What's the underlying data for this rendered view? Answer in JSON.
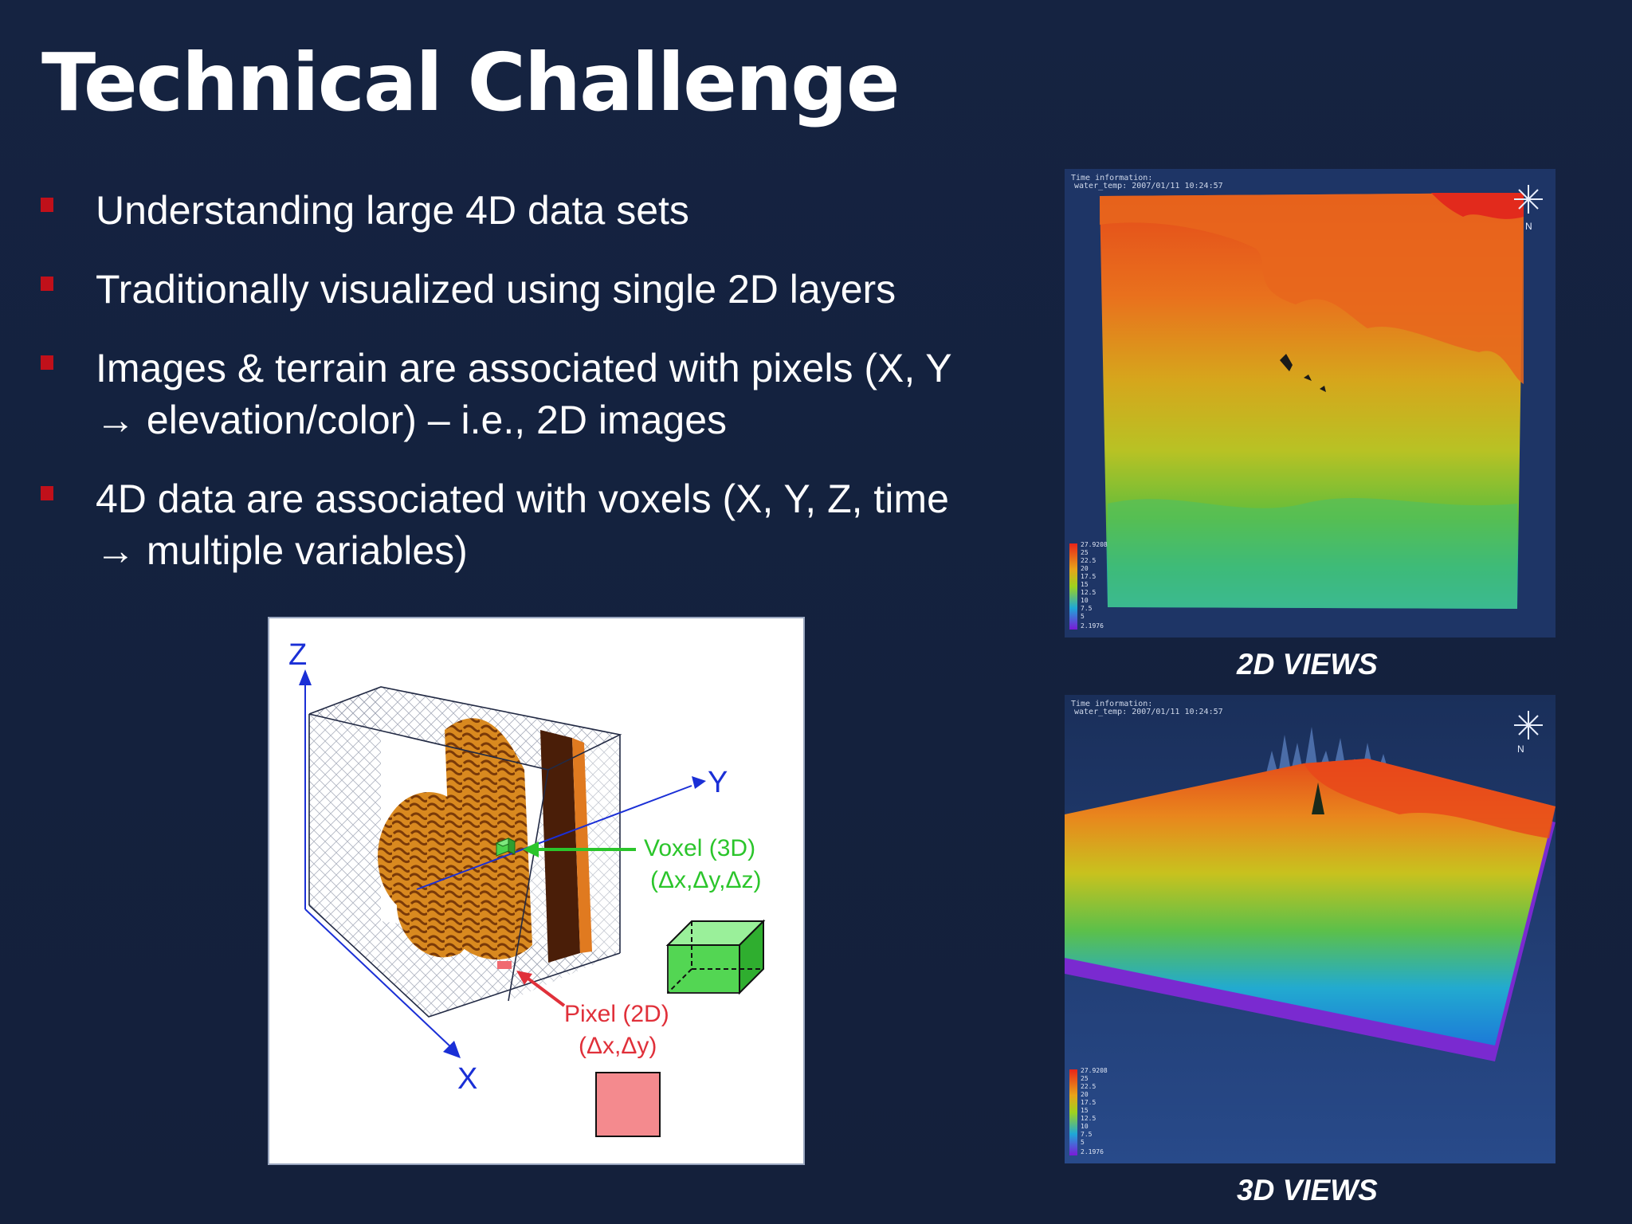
{
  "slide": {
    "title": "Technical Challenge",
    "bullets": [
      {
        "line1": "Understanding large 4D data sets",
        "line2": ""
      },
      {
        "line1": "Traditionally visualized using single 2D layers",
        "line2": ""
      },
      {
        "line1": "Images & terrain are associated with pixels (X, Y",
        "line2": "→ elevation/color) – i.e., 2D images"
      },
      {
        "line1": "4D data are associated with voxels (X, Y, Z, time",
        "line2": "→ multiple variables)"
      }
    ]
  },
  "diagram": {
    "axis_z": "Z",
    "axis_y": "Y",
    "axis_x": "X",
    "voxel_label": "Voxel (3D)",
    "voxel_formula": "(Δx,Δy,Δz)",
    "pixel_label": "Pixel (2D)",
    "pixel_formula": "(Δx,Δy)"
  },
  "maps": {
    "view_2d": {
      "caption": "2D VIEWS",
      "info_line1": "Time information:",
      "info_line2": "water_temp: 2007/01/11 10:24:57",
      "north": "N",
      "legend": [
        "27.9208",
        "25",
        "22.5",
        "20",
        "17.5",
        "15",
        "12.5",
        "10",
        "7.5",
        "5",
        "2.1976"
      ]
    },
    "view_3d": {
      "caption": "3D VIEWS",
      "info_line1": "Time information:",
      "info_line2": "water_temp: 2007/01/11 10:24:57",
      "north": "N",
      "legend": [
        "27.9208",
        "25",
        "22.5",
        "20",
        "17.5",
        "15",
        "12.5",
        "10",
        "7.5",
        "5",
        "2.1976"
      ]
    }
  },
  "colors": {
    "background": "#14213d",
    "bullet_marker": "#c0101a",
    "diagram_axis": "#1a2fd6",
    "voxel_green": "#2bc52b",
    "pixel_red": "#e0303a",
    "sst_warm": "#e9611d",
    "sst_cold": "#1fb0d6"
  }
}
